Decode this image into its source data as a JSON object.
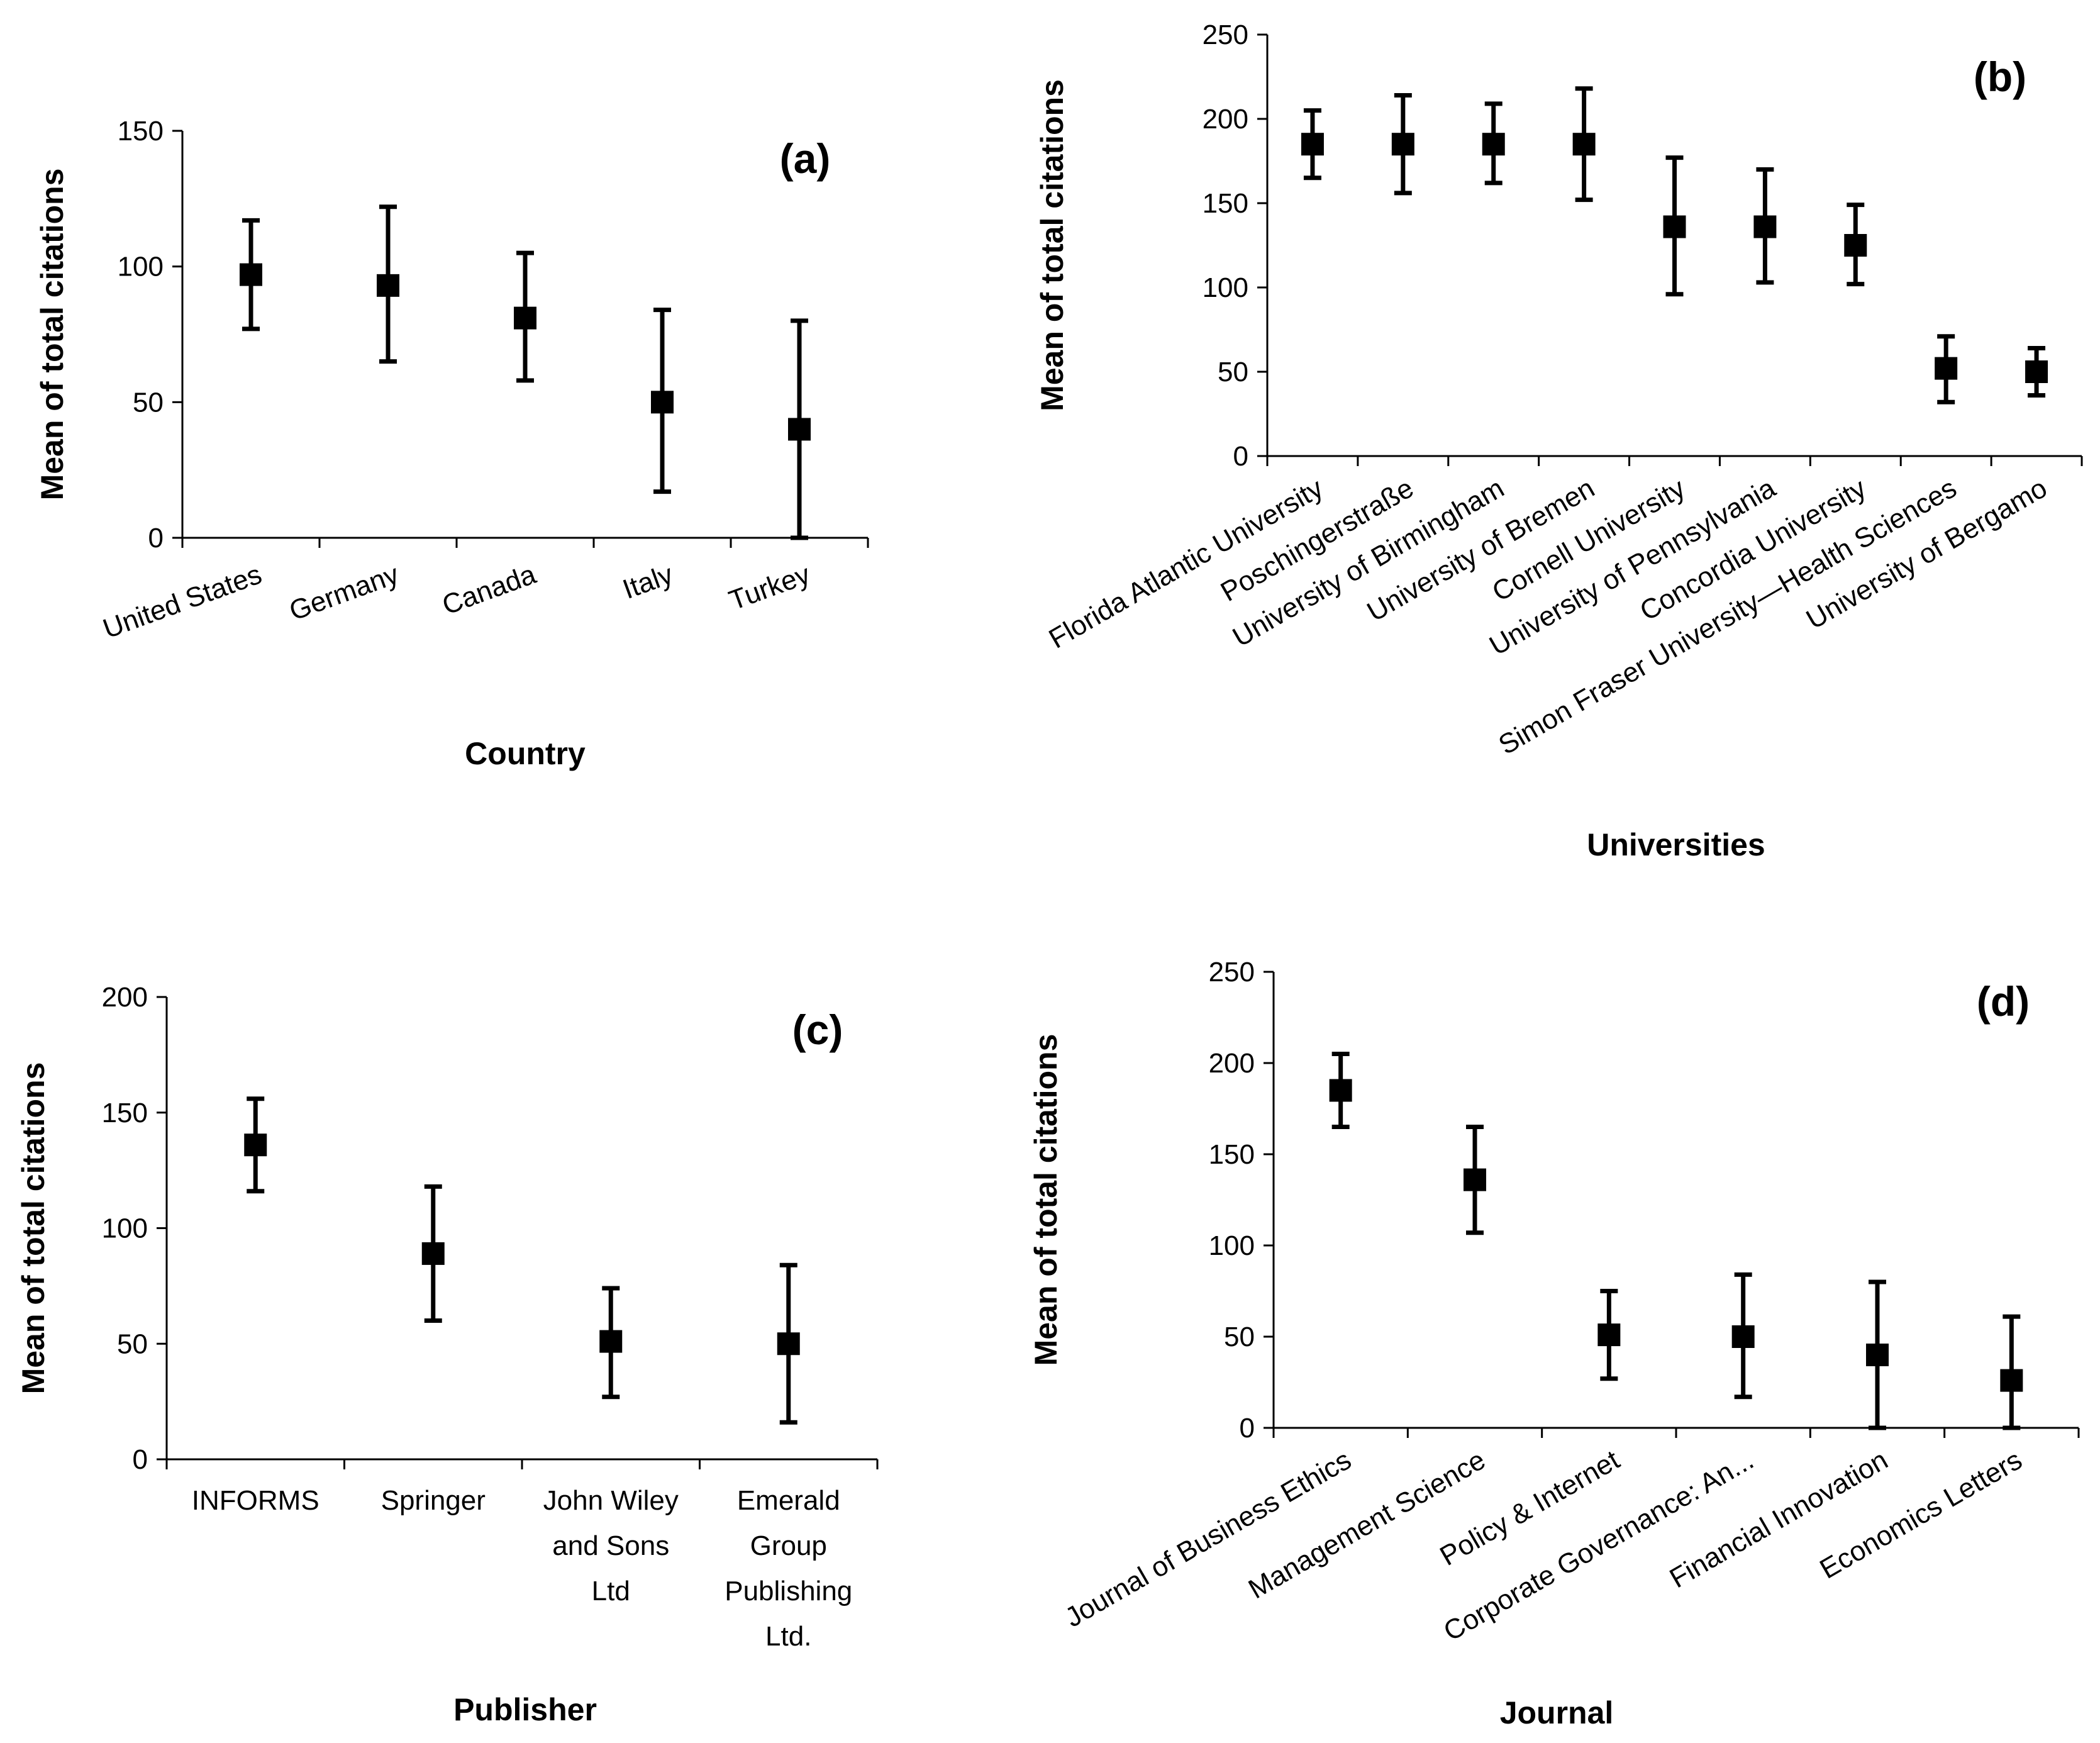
{
  "chart_data": [
    {
      "id": "a",
      "type": "scatter",
      "title": "(a)",
      "xlabel": "Country",
      "ylabel": "Mean of total citations",
      "ylim": [
        0,
        150
      ],
      "yticks": [
        0,
        50,
        100,
        150
      ],
      "categories": [
        "United States",
        "Germany",
        "Canada",
        "Italy",
        "Turkey"
      ],
      "values": [
        97,
        93,
        81,
        50,
        40
      ],
      "error_low": [
        77,
        65,
        58,
        17,
        0
      ],
      "error_high": [
        117,
        122,
        105,
        84,
        80
      ]
    },
    {
      "id": "b",
      "type": "scatter",
      "title": "(b)",
      "xlabel": "Universities",
      "ylabel": "Mean of total citations",
      "ylim": [
        0,
        250
      ],
      "yticks": [
        0,
        50,
        100,
        150,
        200,
        250
      ],
      "categories": [
        "Florida Atlantic University",
        "Poschingerstraße",
        "University of Birmingham",
        "University of Bremen",
        "Cornell University",
        "University of Pennsylvania",
        "Concordia University",
        "Simon Fraser University—Health Sciences",
        "University of Bergamo"
      ],
      "values": [
        185,
        185,
        185,
        185,
        136,
        136,
        125,
        52,
        50
      ],
      "error_low": [
        165,
        156,
        162,
        152,
        96,
        103,
        102,
        32,
        36
      ],
      "error_high": [
        205,
        214,
        209,
        218,
        177,
        170,
        149,
        71,
        64
      ]
    },
    {
      "id": "c",
      "type": "scatter",
      "title": "(c)",
      "xlabel": "Publisher",
      "ylabel": "Mean of total citations",
      "ylim": [
        0,
        200
      ],
      "yticks": [
        0,
        50,
        100,
        150,
        200
      ],
      "categories": [
        "INFORMS",
        "Springer",
        "John Wiley and Sons Ltd",
        "Emerald Group Publishing Ltd."
      ],
      "category_lines": [
        [
          "INFORMS"
        ],
        [
          "Springer"
        ],
        [
          "John Wiley",
          "and Sons",
          "Ltd"
        ],
        [
          "Emerald",
          "Group",
          "Publishing",
          "Ltd."
        ]
      ],
      "values": [
        136,
        89,
        51,
        50
      ],
      "error_low": [
        116,
        60,
        27,
        16
      ],
      "error_high": [
        156,
        118,
        74,
        84
      ]
    },
    {
      "id": "d",
      "type": "scatter",
      "title": "(d)",
      "xlabel": "Journal",
      "ylabel": "Mean of total citations",
      "ylim": [
        0,
        250
      ],
      "yticks": [
        0,
        50,
        100,
        150,
        200,
        250
      ],
      "categories": [
        "Journal of Business Ethics",
        "Management Science",
        "Policy & Internet",
        "Corporate Governance: An...",
        "Financial Innovation",
        "Economics Letters"
      ],
      "values": [
        185,
        136,
        51,
        50,
        40,
        26
      ],
      "error_low": [
        165,
        107,
        27,
        17,
        0,
        0
      ],
      "error_high": [
        205,
        165,
        75,
        84,
        80,
        61
      ]
    }
  ]
}
